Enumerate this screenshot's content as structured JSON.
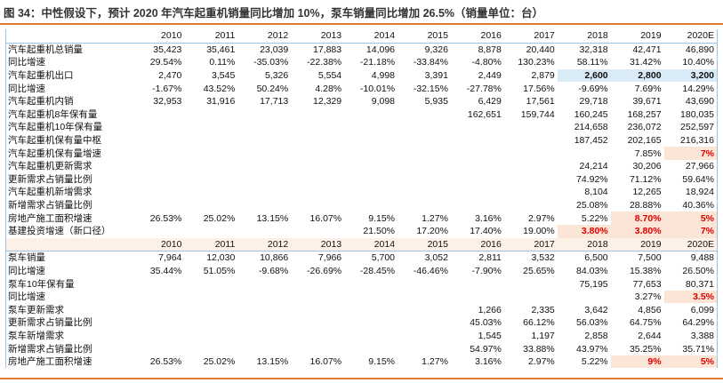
{
  "title": "图 34：中性假设下，预计 2020 年汽车起重机销量同比增加 10%，泵车销量同比增加 26.5%（销量单位：台）",
  "table": {
    "sections": [
      {
        "header": [
          "2010",
          "2011",
          "2012",
          "2013",
          "2014",
          "2015",
          "2016",
          "2017",
          "2018",
          "2019",
          "2020E"
        ],
        "rows": [
          {
            "label": "汽车起重机总销量",
            "cells": [
              "35,423",
              "35,461",
              "23,039",
              "17,883",
              "14,096",
              "9,326",
              "8,878",
              "20,440",
              "32,318",
              "42,471",
              "46,890"
            ]
          },
          {
            "label": "同比增速",
            "cells": [
              "29.54%",
              "0.11%",
              "-35.03%",
              "-22.38%",
              "-21.18%",
              "-33.84%",
              "-4.80%",
              "130.23%",
              "58.11%",
              "31.42%",
              "10.40%"
            ]
          },
          {
            "label": "汽车起重机出口",
            "cells": [
              "2,470",
              "3,545",
              "5,326",
              "5,554",
              "4,998",
              "3,391",
              "2,449",
              "2,879",
              "2,600",
              "2,800",
              "3,200"
            ]
          },
          {
            "label": "同比增速",
            "cells": [
              "-1.67%",
              "43.52%",
              "50.24%",
              "4.28%",
              "-10.01%",
              "-32.15%",
              "-27.78%",
              "17.56%",
              "-9.69%",
              "7.69%",
              "14.29%"
            ]
          },
          {
            "label": "汽车起重机内销",
            "cells": [
              "32,953",
              "31,916",
              "17,713",
              "12,329",
              "9,098",
              "5,935",
              "6,429",
              "17,561",
              "29,718",
              "39,671",
              "43,690"
            ]
          },
          {
            "label": "汽车起重机8年保有量",
            "cells": [
              null,
              null,
              null,
              null,
              null,
              null,
              "162,651",
              "159,744",
              "160,245",
              "168,257",
              "180,035"
            ]
          },
          {
            "label": "汽车起重机10年保有量",
            "cells": [
              null,
              null,
              null,
              null,
              null,
              null,
              null,
              null,
              "214,658",
              "236,072",
              "252,597"
            ]
          },
          {
            "label": "汽车起重机保有量中枢",
            "cells": [
              null,
              null,
              null,
              null,
              null,
              null,
              null,
              null,
              "187,452",
              "202,165",
              "216,316"
            ]
          },
          {
            "label": "汽车起重机保有量增速",
            "cells": [
              null,
              null,
              null,
              null,
              null,
              null,
              null,
              null,
              null,
              "7.85%",
              "7%"
            ]
          },
          {
            "label": "汽车起重机更新需求",
            "cells": [
              null,
              null,
              null,
              null,
              null,
              null,
              null,
              null,
              "24,214",
              "30,206",
              "27,966"
            ]
          },
          {
            "label": "更新需求占销量比例",
            "cells": [
              null,
              null,
              null,
              null,
              null,
              null,
              null,
              null,
              "74.92%",
              "71.12%",
              "59.64%"
            ]
          },
          {
            "label": "汽车起重机新增需求",
            "cells": [
              null,
              null,
              null,
              null,
              null,
              null,
              null,
              null,
              "8,104",
              "12,265",
              "18,924"
            ]
          },
          {
            "label": "新增需求占销量比例",
            "cells": [
              null,
              null,
              null,
              null,
              null,
              null,
              null,
              null,
              "25.08%",
              "28.88%",
              "40.36%"
            ]
          },
          {
            "label": "房地产施工面积增速",
            "cells": [
              "26.53%",
              "25.02%",
              "13.15%",
              "16.07%",
              "9.15%",
              "1.27%",
              "3.16%",
              "2.97%",
              "5.22%",
              "8.70%",
              "5%"
            ]
          },
          {
            "label": "基建投资增速（新口径）",
            "cells": [
              null,
              null,
              null,
              null,
              "21.50%",
              "17.20%",
              "17.40%",
              "19.00%",
              "3.80%",
              "3.80%",
              "7%"
            ]
          }
        ]
      },
      {
        "header": [
          "2010",
          "2011",
          "2012",
          "2013",
          "2014",
          "2015",
          "2016",
          "2017",
          "2018",
          "2019",
          "2020E"
        ],
        "rows": [
          {
            "label": "泵车销量",
            "cells": [
              "7,964",
              "12,030",
              "10,866",
              "7,966",
              "5,700",
              "3,052",
              "2,811",
              "3,532",
              "6,500",
              "7,500",
              "9,488"
            ]
          },
          {
            "label": "同比增速",
            "cells": [
              "35.44%",
              "51.05%",
              "-9.68%",
              "-26.69%",
              "-28.45%",
              "-46.46%",
              "-7.90%",
              "25.65%",
              "84.03%",
              "15.38%",
              "26.50%"
            ]
          },
          {
            "label": "泵车10年保有量",
            "cells": [
              null,
              null,
              null,
              null,
              null,
              null,
              null,
              null,
              "75,195",
              "77,653",
              "80,371"
            ]
          },
          {
            "label": "同比增速",
            "cells": [
              null,
              null,
              null,
              null,
              null,
              null,
              null,
              null,
              null,
              "3.27%",
              "3.5%"
            ]
          },
          {
            "label": "泵车更新需求",
            "cells": [
              null,
              null,
              null,
              null,
              null,
              null,
              "1,266",
              "2,335",
              "3,642",
              "4,856",
              "6,099"
            ]
          },
          {
            "label": "更新需求占销量比例",
            "cells": [
              null,
              null,
              null,
              null,
              null,
              null,
              "45.03%",
              "66.12%",
              "56.03%",
              "64.75%",
              "64.29%"
            ]
          },
          {
            "label": "泵车新增需求",
            "cells": [
              null,
              null,
              null,
              null,
              null,
              null,
              "1,545",
              "1,197",
              "2,858",
              "2,644",
              "3,388"
            ]
          },
          {
            "label": "新增需求占销量比例",
            "cells": [
              null,
              null,
              null,
              null,
              null,
              null,
              "54.97%",
              "33.88%",
              "43.97%",
              "35.25%",
              "35.71%"
            ]
          },
          {
            "label": "房地产施工面积增速",
            "cells": [
              "26.53%",
              "25.02%",
              "13.15%",
              "16.07%",
              "9.15%",
              "1.27%",
              "3.16%",
              "2.97%",
              "5.22%",
              "9%",
              "5%"
            ]
          }
        ]
      }
    ]
  }
}
